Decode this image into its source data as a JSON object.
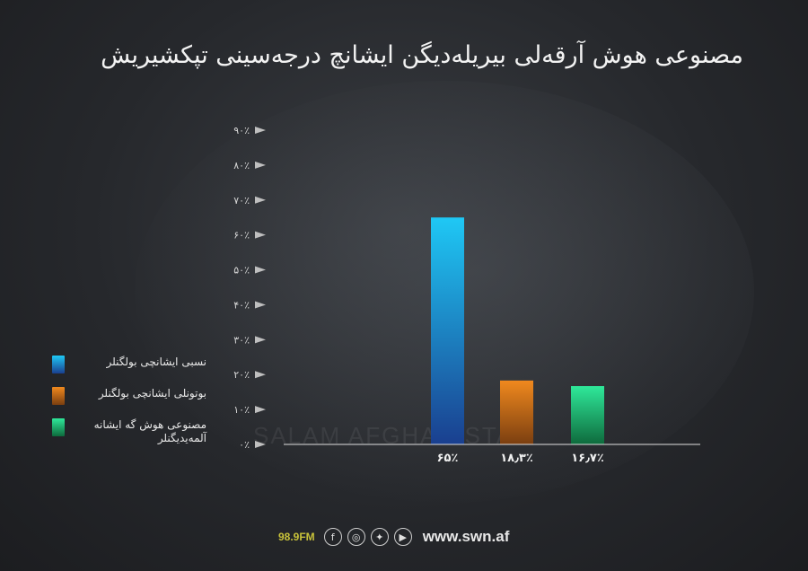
{
  "title": "مصنوعی هوش آرقه‌لی بیریله‌دیگن ایشانچ درجه‌سینی تپکشیریش",
  "watermark": "SALAM AFGHANISTAN",
  "chart_data": {
    "type": "bar",
    "categories": [
      "نسبی ایشانچی بولگنلر",
      "بوتونلی ایشانچی بولگنلر",
      "مصنوعی هوش گه ایشانه آلمه‌یدیگنلر"
    ],
    "values": [
      65,
      18.3,
      16.7
    ],
    "value_labels": [
      "۶۵٪",
      "۱۸٫۳٪",
      "۱۶٫۷٪"
    ],
    "ylim": [
      0,
      90
    ],
    "yticks": [
      0,
      10,
      20,
      30,
      40,
      50,
      60,
      70,
      80,
      90
    ],
    "ytick_labels": [
      "۰٪",
      "۱۰٪",
      "۲۰٪",
      "۳۰٪",
      "۴۰٪",
      "۵۰٪",
      "۶۰٪",
      "۷۰٪",
      "۸۰٪",
      "۹۰٪"
    ],
    "colors": [
      [
        "#1fc8f5",
        "#1a3f8f"
      ],
      [
        "#f0891e",
        "#7a3e10"
      ],
      [
        "#2fe89a",
        "#0e6a3c"
      ]
    ],
    "legend": "left"
  },
  "legend": {
    "items": [
      {
        "label": "نسبی ایشانچی بولگنلر",
        "color_top": "#1fc8f5",
        "color_bottom": "#1a3f8f"
      },
      {
        "label": "بوتونلی ایشانچی بولگنلر",
        "color_top": "#f0891e",
        "color_bottom": "#7a3e10"
      },
      {
        "label": "مصنوعی هوش گه ایشانه آلمه‌یدیگنلر",
        "color_top": "#2fe89a",
        "color_bottom": "#0e6a3c"
      }
    ]
  },
  "footer": {
    "frequency": "98.9FM",
    "icons": [
      "facebook-icon",
      "instagram-icon",
      "twitter-icon",
      "youtube-icon"
    ],
    "website": "www.swn.af"
  }
}
